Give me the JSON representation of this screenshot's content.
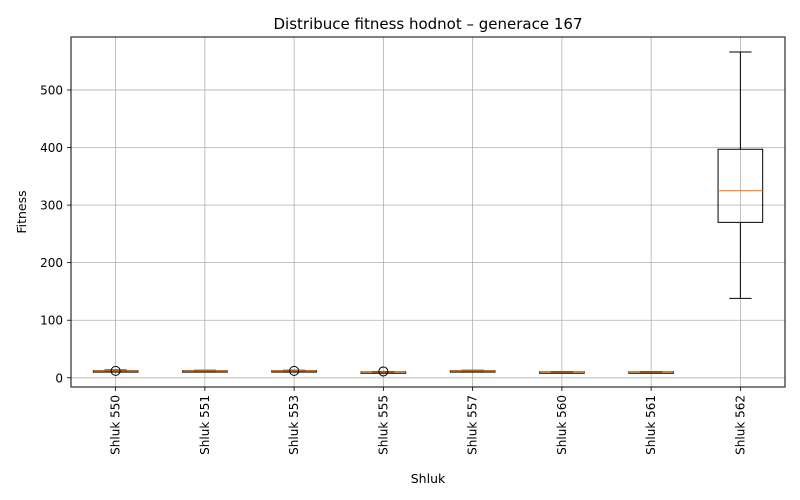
{
  "chart_data": {
    "type": "box",
    "title": "Distribuce fitness hodnot – generace 167",
    "xlabel": "Shluk",
    "ylabel": "Fitness",
    "ylim": [
      -16,
      592
    ],
    "yticks": [
      0,
      100,
      200,
      300,
      400,
      500
    ],
    "grid": true,
    "boxes": [
      {
        "label": "Shluk 550",
        "whisker_low": 11,
        "q1": 11.5,
        "median": 12,
        "q3": 12.5,
        "whisker_high": 13.5,
        "outliers": [
          12
        ]
      },
      {
        "label": "Shluk 551",
        "whisker_low": 11,
        "q1": 11.5,
        "median": 12,
        "q3": 12.5,
        "whisker_high": 13,
        "outliers": []
      },
      {
        "label": "Shluk 553",
        "whisker_low": 11,
        "q1": 11.5,
        "median": 12,
        "q3": 12.5,
        "whisker_high": 13,
        "outliers": [
          12
        ]
      },
      {
        "label": "Shluk 555",
        "whisker_low": 9,
        "q1": 9.5,
        "median": 10,
        "q3": 10.5,
        "whisker_high": 11,
        "outliers": [
          11
        ]
      },
      {
        "label": "Shluk 557",
        "whisker_low": 11,
        "q1": 11.5,
        "median": 12,
        "q3": 12.5,
        "whisker_high": 13,
        "outliers": []
      },
      {
        "label": "Shluk 560",
        "whisker_low": 9,
        "q1": 9.5,
        "median": 10,
        "q3": 10.5,
        "whisker_high": 11,
        "outliers": []
      },
      {
        "label": "Shluk 561",
        "whisker_low": 9,
        "q1": 9.5,
        "median": 10,
        "q3": 10.5,
        "whisker_high": 11,
        "outliers": []
      },
      {
        "label": "Shluk 562",
        "whisker_low": 138,
        "q1": 270,
        "median": 325,
        "q3": 397,
        "whisker_high": 566,
        "outliers": []
      }
    ],
    "colors": {
      "box": "#000000",
      "median": "#ff7f0e",
      "grid": "#b0b0b0"
    }
  }
}
